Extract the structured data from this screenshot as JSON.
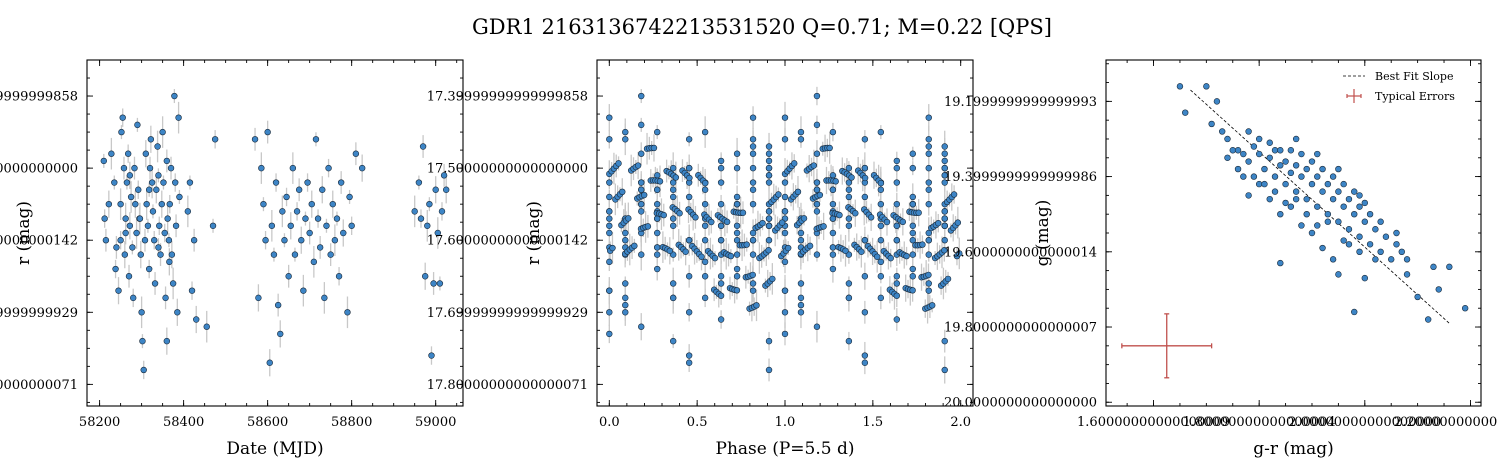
{
  "figure": {
    "title": "GDR1 2163136742213531520  Q=0.71; M=0.22 [QPS]"
  },
  "colors": {
    "point_fill": "#3d85c6",
    "point_edge": "#1a2a3a",
    "errorbar": "#c8c8c8",
    "typical_error": "#c0504d",
    "fit_line": "#000000"
  },
  "chart_data": [
    {
      "type": "scatter",
      "name_key": "timeseries",
      "xlabel": "Date (MJD)",
      "ylabel": "r (mag)",
      "xlim": [
        58170,
        59065
      ],
      "ylim": [
        17.83,
        17.35
      ],
      "y_inverted": true,
      "x_major_ticks": [
        58200,
        58400,
        58600,
        58800,
        59000
      ],
      "y_major_ticks": [
        17.4,
        17.5,
        17.6,
        17.7,
        17.8
      ],
      "x_minor_step": 50,
      "y_minor_step": 0.025,
      "points": [
        [
          58210,
          17.49
        ],
        [
          58212,
          17.57
        ],
        [
          58215,
          17.6
        ],
        [
          58222,
          17.55
        ],
        [
          58228,
          17.48
        ],
        [
          58235,
          17.52
        ],
        [
          58238,
          17.64
        ],
        [
          58240,
          17.61
        ],
        [
          58245,
          17.67
        ],
        [
          58250,
          17.55
        ],
        [
          58252,
          17.45
        ],
        [
          58255,
          17.43
        ],
        [
          58258,
          17.5
        ],
        [
          58260,
          17.62
        ],
        [
          58262,
          17.57
        ],
        [
          58265,
          17.52
        ],
        [
          58268,
          17.48
        ],
        [
          58270,
          17.65
        ],
        [
          58272,
          17.58
        ],
        [
          58275,
          17.54
        ],
        [
          58278,
          17.61
        ],
        [
          58280,
          17.68
        ],
        [
          58283,
          17.5
        ],
        [
          58285,
          17.55
        ],
        [
          58288,
          17.59
        ],
        [
          58290,
          17.44
        ],
        [
          58292,
          17.53
        ],
        [
          58295,
          17.57
        ],
        [
          58298,
          17.62
        ],
        [
          58300,
          17.7
        ],
        [
          58302,
          17.74
        ],
        [
          58305,
          17.78
        ],
        [
          58308,
          17.6
        ],
        [
          58310,
          17.48
        ],
        [
          58312,
          17.55
        ],
        [
          58315,
          17.58
        ],
        [
          58318,
          17.64
        ],
        [
          58320,
          17.5
        ],
        [
          58322,
          17.46
        ],
        [
          58325,
          17.52
        ],
        [
          58327,
          17.56
        ],
        [
          58330,
          17.6
        ],
        [
          58332,
          17.66
        ],
        [
          58335,
          17.53
        ],
        [
          58338,
          17.47
        ],
        [
          58340,
          17.51
        ],
        [
          58342,
          17.58
        ],
        [
          58345,
          17.62
        ],
        [
          58348,
          17.55
        ],
        [
          58350,
          17.45
        ],
        [
          58352,
          17.52
        ],
        [
          58355,
          17.59
        ],
        [
          58357,
          17.68
        ],
        [
          58360,
          17.74
        ],
        [
          58362,
          17.57
        ],
        [
          58365,
          17.6
        ],
        [
          58367,
          17.55
        ],
        [
          58370,
          17.5
        ],
        [
          58372,
          17.62
        ],
        [
          58375,
          17.66
        ],
        [
          58378,
          17.4
        ],
        [
          58380,
          17.52
        ],
        [
          58382,
          17.58
        ],
        [
          58385,
          17.7
        ],
        [
          58388,
          17.43
        ],
        [
          58390,
          17.54
        ],
        [
          58250,
          17.6
        ],
        [
          58262,
          17.59
        ],
        [
          58272,
          17.51
        ],
        [
          58296,
          17.57
        ],
        [
          58318,
          17.53
        ],
        [
          58340,
          17.61
        ],
        [
          58360,
          17.49
        ],
        [
          58366,
          17.63
        ],
        [
          58410,
          17.56
        ],
        [
          58415,
          17.52
        ],
        [
          58420,
          17.67
        ],
        [
          58425,
          17.6
        ],
        [
          58430,
          17.71
        ],
        [
          58455,
          17.72
        ],
        [
          58470,
          17.58
        ],
        [
          58475,
          17.46
        ],
        [
          58570,
          17.46
        ],
        [
          58578,
          17.68
        ],
        [
          58585,
          17.5
        ],
        [
          58590,
          17.55
        ],
        [
          58595,
          17.6
        ],
        [
          58600,
          17.45
        ],
        [
          58605,
          17.77
        ],
        [
          58610,
          17.58
        ],
        [
          58615,
          17.62
        ],
        [
          58620,
          17.52
        ],
        [
          58625,
          17.69
        ],
        [
          58630,
          17.73
        ],
        [
          58635,
          17.56
        ],
        [
          58640,
          17.6
        ],
        [
          58645,
          17.54
        ],
        [
          58650,
          17.65
        ],
        [
          58655,
          17.58
        ],
        [
          58660,
          17.5
        ],
        [
          58665,
          17.62
        ],
        [
          58670,
          17.56
        ],
        [
          58675,
          17.53
        ],
        [
          58680,
          17.6
        ],
        [
          58685,
          17.67
        ],
        [
          58690,
          17.57
        ],
        [
          58695,
          17.52
        ],
        [
          58700,
          17.59
        ],
        [
          58705,
          17.55
        ],
        [
          58710,
          17.63
        ],
        [
          58715,
          17.46
        ],
        [
          58720,
          17.57
        ],
        [
          58725,
          17.61
        ],
        [
          58730,
          17.53
        ],
        [
          58735,
          17.68
        ],
        [
          58740,
          17.58
        ],
        [
          58745,
          17.5
        ],
        [
          58750,
          17.62
        ],
        [
          58755,
          17.55
        ],
        [
          58760,
          17.6
        ],
        [
          58765,
          17.57
        ],
        [
          58770,
          17.65
        ],
        [
          58775,
          17.52
        ],
        [
          58780,
          17.59
        ],
        [
          58790,
          17.7
        ],
        [
          58795,
          17.54
        ],
        [
          58800,
          17.58
        ],
        [
          58810,
          17.48
        ],
        [
          58825,
          17.5
        ],
        [
          58950,
          17.56
        ],
        [
          58960,
          17.52
        ],
        [
          58965,
          17.57
        ],
        [
          58970,
          17.47
        ],
        [
          58975,
          17.65
        ],
        [
          58980,
          17.58
        ],
        [
          58985,
          17.55
        ],
        [
          58990,
          17.76
        ],
        [
          58995,
          17.66
        ],
        [
          59000,
          17.53
        ],
        [
          59005,
          17.59
        ],
        [
          59010,
          17.66
        ],
        [
          59015,
          17.56
        ],
        [
          59020,
          17.51
        ],
        [
          59025,
          17.53
        ]
      ]
    },
    {
      "type": "scatter",
      "name_key": "phase",
      "xlabel": "Phase (P=5.5 d)",
      "ylabel": "r (mag)",
      "xlim": [
        -0.07,
        2.07
      ],
      "ylim": [
        17.83,
        17.35
      ],
      "y_inverted": true,
      "x_major_ticks": [
        0.0,
        0.5,
        1.0,
        1.5,
        2.0
      ],
      "y_major_ticks": [
        17.4,
        17.5,
        17.6,
        17.7,
        17.8
      ],
      "x_minor_step": 0.1,
      "y_minor_step": 0.025
    },
    {
      "type": "scatter",
      "name_key": "cmd",
      "xlabel": "g-r (mag)",
      "ylabel": "g (mag)",
      "xlim": [
        1.51,
        2.22
      ],
      "ylim": [
        20.01,
        19.09
      ],
      "y_inverted": true,
      "x_major_ticks": [
        1.6,
        1.8,
        2.0,
        2.2
      ],
      "y_major_ticks": [
        19.2,
        19.4,
        19.6,
        19.8,
        20.0
      ],
      "x_minor_step": 0.05,
      "y_minor_step": 0.05,
      "fit_line": [
        [
          1.67,
          19.17
        ],
        [
          2.16,
          19.79
        ]
      ],
      "typical_error": {
        "x": 1.625,
        "y": 19.85,
        "xerr": 0.085,
        "yerr": 0.085
      },
      "legend": {
        "position": "top-right",
        "entries": [
          "Best Fit Slope",
          "Typical Errors"
        ]
      },
      "points": [
        [
          1.65,
          19.16
        ],
        [
          1.66,
          19.23
        ],
        [
          1.7,
          19.16
        ],
        [
          1.72,
          19.2
        ],
        [
          1.73,
          19.28
        ],
        [
          1.71,
          19.26
        ],
        [
          1.75,
          19.33
        ],
        [
          1.74,
          19.3
        ],
        [
          1.76,
          19.33
        ],
        [
          1.77,
          19.34
        ],
        [
          1.78,
          19.28
        ],
        [
          1.78,
          19.36
        ],
        [
          1.79,
          19.32
        ],
        [
          1.8,
          19.3
        ],
        [
          1.8,
          19.34
        ],
        [
          1.81,
          19.38
        ],
        [
          1.82,
          19.31
        ],
        [
          1.82,
          19.35
        ],
        [
          1.83,
          19.33
        ],
        [
          1.83,
          19.4
        ],
        [
          1.84,
          19.37
        ],
        [
          1.84,
          19.33
        ],
        [
          1.85,
          19.36
        ],
        [
          1.85,
          19.42
        ],
        [
          1.86,
          19.39
        ],
        [
          1.86,
          19.33
        ],
        [
          1.87,
          19.37
        ],
        [
          1.87,
          19.44
        ],
        [
          1.88,
          19.4
        ],
        [
          1.88,
          19.34
        ],
        [
          1.89,
          19.38
        ],
        [
          1.89,
          19.46
        ],
        [
          1.9,
          19.42
        ],
        [
          1.9,
          19.36
        ],
        [
          1.91,
          19.4
        ],
        [
          1.91,
          19.48
        ],
        [
          1.92,
          19.44
        ],
        [
          1.92,
          19.38
        ],
        [
          1.93,
          19.42
        ],
        [
          1.93,
          19.5
        ],
        [
          1.94,
          19.46
        ],
        [
          1.94,
          19.4
        ],
        [
          1.95,
          19.44
        ],
        [
          1.95,
          19.52
        ],
        [
          1.96,
          19.48
        ],
        [
          1.96,
          19.42
        ],
        [
          1.97,
          19.46
        ],
        [
          1.97,
          19.54
        ],
        [
          1.98,
          19.5
        ],
        [
          1.98,
          19.44
        ],
        [
          1.99,
          19.48
        ],
        [
          1.99,
          19.56
        ],
        [
          2.0,
          19.52
        ],
        [
          2.0,
          19.47
        ],
        [
          2.01,
          19.5
        ],
        [
          2.01,
          19.58
        ],
        [
          2.02,
          19.54
        ],
        [
          2.03,
          19.6
        ],
        [
          2.04,
          19.56
        ],
        [
          2.05,
          19.62
        ],
        [
          2.06,
          19.58
        ],
        [
          2.07,
          19.6
        ],
        [
          2.08,
          19.66
        ],
        [
          2.1,
          19.72
        ],
        [
          2.12,
          19.78
        ],
        [
          2.13,
          19.64
        ],
        [
          2.16,
          19.64
        ],
        [
          2.19,
          19.75
        ],
        [
          1.98,
          19.76
        ],
        [
          2.0,
          19.67
        ],
        [
          1.95,
          19.66
        ],
        [
          1.8,
          19.42
        ],
        [
          1.82,
          19.46
        ],
        [
          1.78,
          19.45
        ],
        [
          1.84,
          19.5
        ],
        [
          1.86,
          19.48
        ],
        [
          1.88,
          19.53
        ],
        [
          1.9,
          19.55
        ],
        [
          1.92,
          19.59
        ],
        [
          1.94,
          19.62
        ],
        [
          1.96,
          19.57
        ],
        [
          1.84,
          19.63
        ],
        [
          1.76,
          19.38
        ],
        [
          1.81,
          19.42
        ],
        [
          1.87,
          19.46
        ],
        [
          1.93,
          19.52
        ],
        [
          1.89,
          19.5
        ],
        [
          1.91,
          19.53
        ],
        [
          1.83,
          19.44
        ],
        [
          1.85,
          19.47
        ],
        [
          1.97,
          19.58
        ],
        [
          1.99,
          19.6
        ],
        [
          2.02,
          19.62
        ],
        [
          1.79,
          19.4
        ],
        [
          1.87,
          19.3
        ],
        [
          1.91,
          19.34
        ],
        [
          1.95,
          19.38
        ],
        [
          1.99,
          19.45
        ],
        [
          2.03,
          19.52
        ],
        [
          2.06,
          19.55
        ],
        [
          1.74,
          19.35
        ],
        [
          1.77,
          19.4
        ],
        [
          2.08,
          19.62
        ],
        [
          2.14,
          19.7
        ]
      ]
    }
  ]
}
